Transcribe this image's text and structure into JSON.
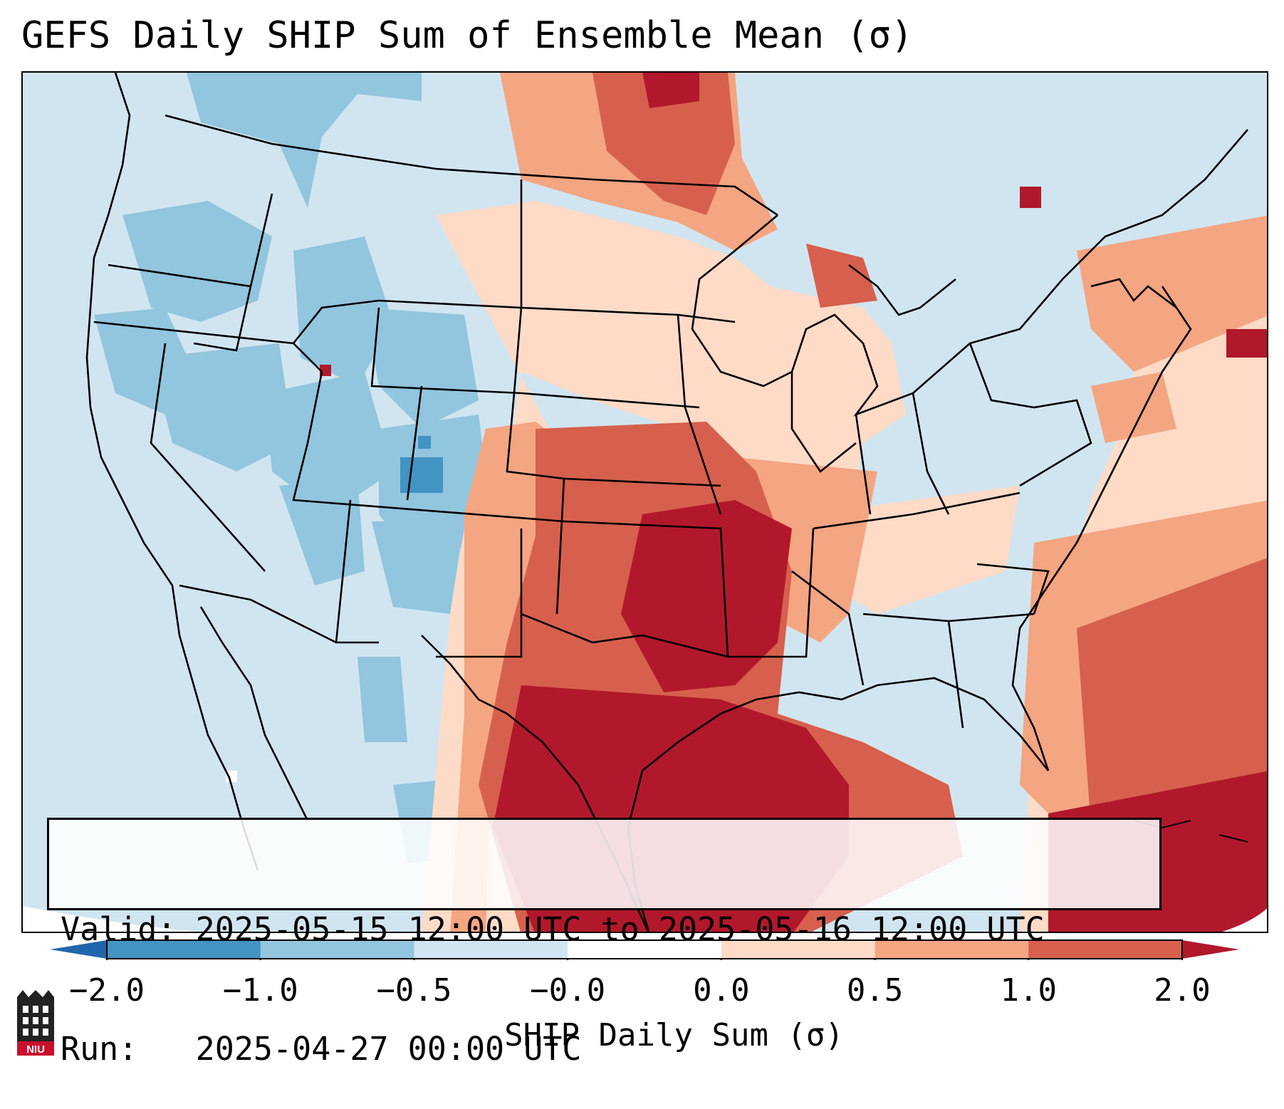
{
  "title": "GEFS Daily SHIP Sum of Ensemble Mean (σ)",
  "info": {
    "valid_line": "Valid: 2025-05-15 12:00 UTC to 2025-05-16 12:00 UTC",
    "run_line": "Run:   2025-04-27 00:00 UTC"
  },
  "colorbar": {
    "label": "SHIP Daily Sum (σ)",
    "ticks": [
      "−2.0",
      "−1.0",
      "−0.5",
      "−0.0",
      "0.0",
      "0.5",
      "1.0",
      "2.0"
    ],
    "colors": [
      "#4393c3",
      "#92c5de",
      "#d1e5f0",
      "#ffffff",
      "#fddbc7",
      "#f4a582",
      "#d6604d",
      "#b2182b"
    ],
    "extend_low_color": "#2166ac",
    "extend_high_color": "#b2182b"
  },
  "logo": {
    "text": "NIU",
    "icon": "niu-logo-icon"
  }
}
